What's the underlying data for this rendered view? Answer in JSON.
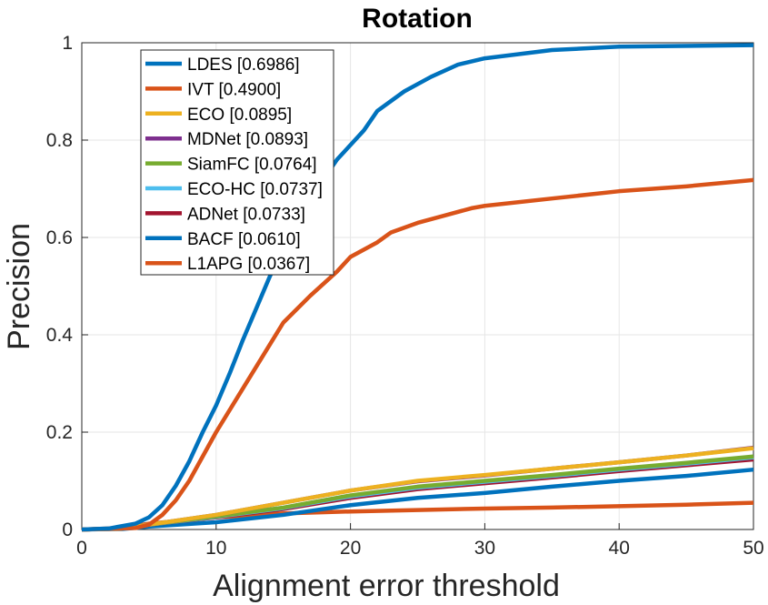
{
  "chart_data": {
    "type": "line",
    "title": "Rotation",
    "xlabel": "Alignment error threshold",
    "ylabel": "Precision",
    "xlim": [
      0,
      50
    ],
    "ylim": [
      0,
      1
    ],
    "xticks": [
      "0",
      "10",
      "20",
      "30",
      "40",
      "50"
    ],
    "yticks": [
      "0",
      "0.2",
      "0.4",
      "0.6",
      "0.8",
      "1"
    ],
    "grid": true,
    "legend_position": "top-left",
    "series": [
      {
        "name": "LDES [0.6986]",
        "color": "#0072BD",
        "x": [
          0,
          2,
          4,
          5,
          6,
          7,
          8,
          9,
          10,
          11,
          12,
          13,
          14,
          15,
          16,
          17,
          18,
          19,
          20,
          21,
          22,
          24,
          26,
          28,
          30,
          35,
          40,
          50
        ],
        "y": [
          0,
          0.002,
          0.012,
          0.025,
          0.05,
          0.09,
          0.14,
          0.2,
          0.255,
          0.32,
          0.39,
          0.455,
          0.52,
          0.58,
          0.63,
          0.68,
          0.72,
          0.76,
          0.79,
          0.82,
          0.86,
          0.9,
          0.93,
          0.955,
          0.968,
          0.985,
          0.992,
          0.995
        ]
      },
      {
        "name": "IVT [0.4900]",
        "color": "#D95319",
        "x": [
          0,
          4,
          5,
          6,
          7,
          8,
          9,
          10,
          12,
          14,
          15,
          17,
          19,
          20,
          22,
          23,
          25,
          27,
          29,
          30,
          35,
          40,
          45,
          50
        ],
        "y": [
          0,
          0.003,
          0.01,
          0.03,
          0.06,
          0.1,
          0.15,
          0.2,
          0.29,
          0.38,
          0.425,
          0.48,
          0.53,
          0.56,
          0.59,
          0.61,
          0.63,
          0.645,
          0.66,
          0.665,
          0.68,
          0.695,
          0.705,
          0.718
        ]
      },
      {
        "name": "ECO [0.0895]",
        "color": "#EDB120",
        "x": [
          0,
          3,
          5,
          10,
          15,
          20,
          25,
          30,
          35,
          40,
          45,
          50
        ],
        "y": [
          0,
          0.002,
          0.01,
          0.03,
          0.055,
          0.08,
          0.1,
          0.112,
          0.125,
          0.138,
          0.152,
          0.167
        ]
      },
      {
        "name": "MDNet [0.0893]",
        "color": "#7E2F8E",
        "x": [
          0,
          3,
          5,
          10,
          15,
          20,
          25,
          30,
          35,
          40,
          45,
          50
        ],
        "y": [
          0,
          0.002,
          0.01,
          0.03,
          0.055,
          0.08,
          0.099,
          0.111,
          0.125,
          0.138,
          0.152,
          0.168
        ]
      },
      {
        "name": "SiamFC [0.0764]",
        "color": "#77AC30",
        "x": [
          0,
          3,
          5,
          10,
          15,
          20,
          25,
          30,
          35,
          40,
          45,
          50
        ],
        "y": [
          0,
          0.002,
          0.01,
          0.027,
          0.045,
          0.07,
          0.088,
          0.1,
          0.112,
          0.125,
          0.137,
          0.15
        ]
      },
      {
        "name": "ECO-HC [0.0737]",
        "color": "#4DBEEE",
        "x": [
          0,
          3,
          5,
          10,
          15,
          20,
          25,
          30,
          35,
          40,
          45,
          50
        ],
        "y": [
          0,
          0.002,
          0.01,
          0.026,
          0.044,
          0.068,
          0.086,
          0.098,
          0.11,
          0.123,
          0.135,
          0.148
        ]
      },
      {
        "name": "ADNet [0.0733]",
        "color": "#A2142F",
        "x": [
          0,
          3,
          5,
          10,
          15,
          20,
          25,
          30,
          35,
          40,
          45,
          50
        ],
        "y": [
          0,
          0.002,
          0.01,
          0.025,
          0.042,
          0.065,
          0.083,
          0.095,
          0.107,
          0.12,
          0.132,
          0.144
        ]
      },
      {
        "name": "BACF [0.0610]",
        "color": "#0072BD",
        "x": [
          0,
          3,
          5,
          10,
          15,
          20,
          25,
          30,
          35,
          40,
          45,
          50
        ],
        "y": [
          0,
          0.001,
          0.006,
          0.015,
          0.03,
          0.05,
          0.065,
          0.075,
          0.088,
          0.1,
          0.11,
          0.123
        ]
      },
      {
        "name": "L1APG [0.0367]",
        "color": "#D95319",
        "x": [
          0,
          3,
          5,
          10,
          15,
          20,
          25,
          30,
          35,
          40,
          45,
          50
        ],
        "y": [
          0,
          0.003,
          0.012,
          0.025,
          0.033,
          0.037,
          0.04,
          0.043,
          0.045,
          0.048,
          0.051,
          0.055
        ]
      }
    ]
  }
}
